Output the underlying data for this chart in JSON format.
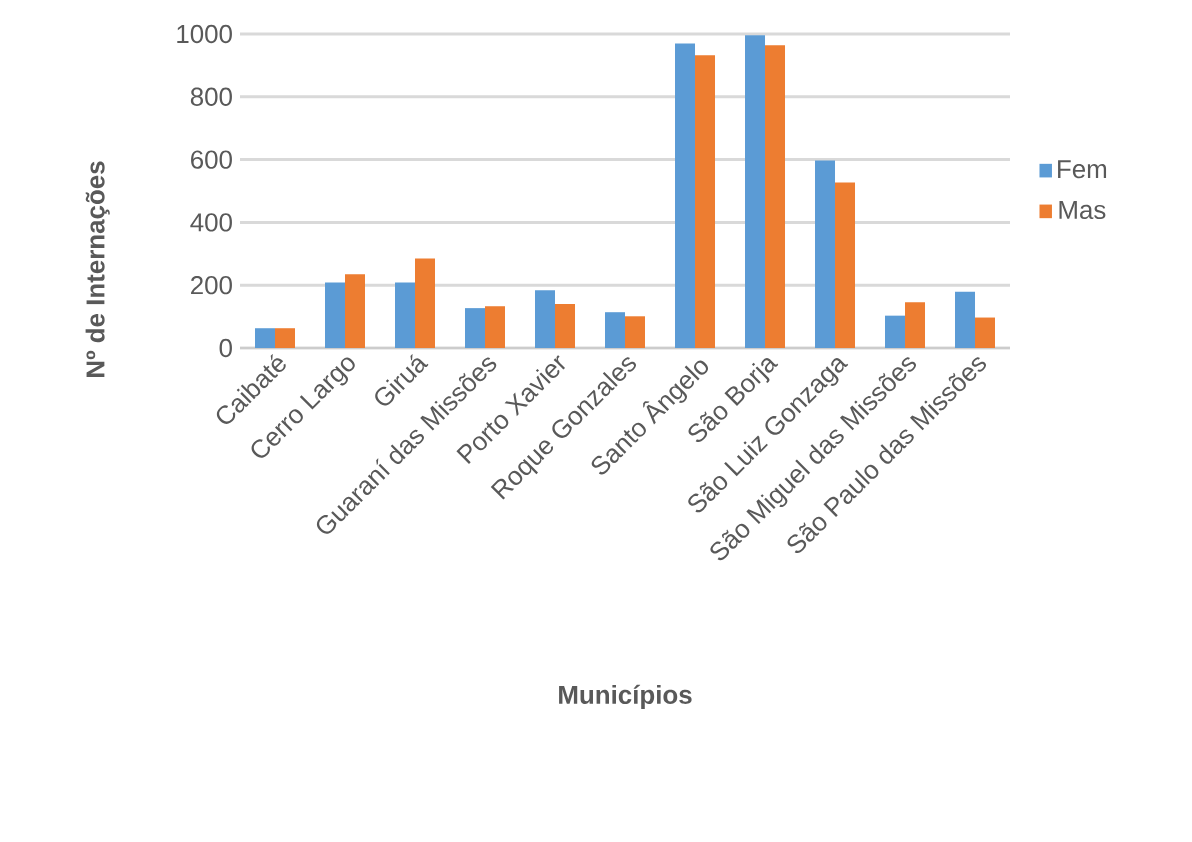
{
  "chart_data": {
    "type": "bar",
    "xlabel": "Municípios",
    "ylabel": "Nº de Internações",
    "categories": [
      "Caibaté",
      "Cerro Largo",
      "Giruá",
      "Guaraní das Missões",
      "Porto Xavier",
      "Roque Gonzales",
      "Santo Ângelo",
      "São Borja",
      "São Luiz Gonzaga",
      "São Miguel das Missões",
      "São Paulo das Missões"
    ],
    "series": [
      {
        "name": "Fem",
        "color": "#5b9bd5",
        "values": [
          63,
          209,
          209,
          127,
          184,
          114,
          970,
          996,
          597,
          103,
          179
        ]
      },
      {
        "name": "Mas",
        "color": "#ed7d31",
        "values": [
          63,
          235,
          285,
          133,
          140,
          101,
          932,
          964,
          527,
          146,
          97
        ]
      }
    ],
    "ylim": [
      0,
      1000
    ],
    "yticks": [
      0,
      200,
      400,
      600,
      800,
      1000
    ],
    "grid": "y",
    "legend": "right"
  }
}
